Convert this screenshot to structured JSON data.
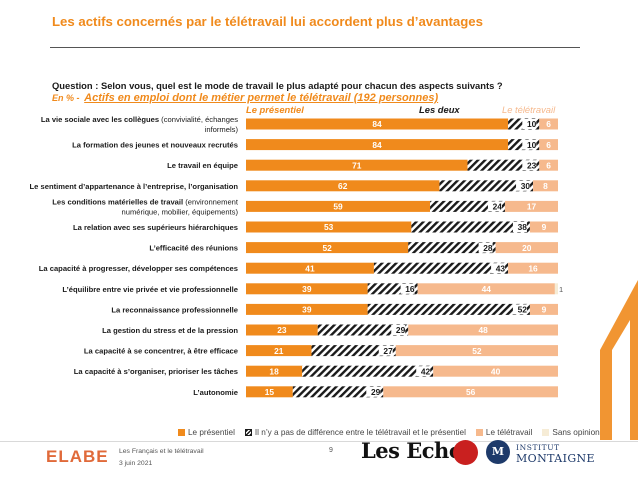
{
  "title": "Les actifs concernés par le télétravail lui accordent plus d’avantages",
  "question": "Question : Selon vous, quel est le mode de travail le plus adapté pour chacun des aspects suivants ?",
  "subquestion": {
    "pct_prefix": "En % -",
    "population": "Actifs en emploi dont le métier permet le télétravail (192 personnes)"
  },
  "column_headers": {
    "presentiel": "Le présentiel",
    "les_deux": "Les deux",
    "teletravail": "Le télétravail"
  },
  "legend": [
    {
      "key": "presentiel",
      "label": "Le présentiel"
    },
    {
      "key": "les_deux",
      "label": "Il n’y a pas de différence entre le télétravail et le présentiel"
    },
    {
      "key": "teletravail",
      "label": "Le télétravail"
    },
    {
      "key": "sans_opinion",
      "label": "Sans opinion"
    }
  ],
  "colors": {
    "accent": "#f08a1c",
    "presentiel": "#f08a1c",
    "les_deux": "#1a1a1a",
    "teletravail": "#f6b98d",
    "sans_opinion": "#f6ecd6"
  },
  "chart_data": {
    "type": "bar",
    "orientation": "horizontal",
    "stacked": true,
    "categories": [
      {
        "label_bold": "La vie sociale avec les collègues",
        "label_rest": " (convivialité, échanges",
        "label_line2": "informels)"
      },
      {
        "label_bold": "La formation des jeunes et nouveaux recrutés",
        "label_rest": "",
        "label_line2": ""
      },
      {
        "label_bold": "Le travail en équipe",
        "label_rest": "",
        "label_line2": ""
      },
      {
        "label_bold": "Le sentiment d’appartenance à l’entreprise, l’organisation",
        "label_rest": "",
        "label_line2": ""
      },
      {
        "label_bold": "Les conditions matérielles de travail",
        "label_rest": " (environnement",
        "label_line2": "numérique, mobilier, équipements)"
      },
      {
        "label_bold": "La relation avec ses supérieurs hiérarchiques",
        "label_rest": "",
        "label_line2": ""
      },
      {
        "label_bold": "L’efficacité des réunions",
        "label_rest": "",
        "label_line2": ""
      },
      {
        "label_bold": "La capacité à progresser, développer ses compétences",
        "label_rest": "",
        "label_line2": ""
      },
      {
        "label_bold": "L’équilibre entre vie privée et vie professionnelle",
        "label_rest": "",
        "label_line2": ""
      },
      {
        "label_bold": "La reconnaissance professionnelle",
        "label_rest": "",
        "label_line2": ""
      },
      {
        "label_bold": "La gestion du stress et de la pression",
        "label_rest": "",
        "label_line2": ""
      },
      {
        "label_bold": "La capacité à se concentrer, à être efficace",
        "label_rest": "",
        "label_line2": ""
      },
      {
        "label_bold": "La capacité à s’organiser, prioriser les tâches",
        "label_rest": "",
        "label_line2": ""
      },
      {
        "label_bold": "L’autonomie",
        "label_rest": "",
        "label_line2": ""
      }
    ],
    "series": [
      {
        "name": "Le présentiel",
        "key": "presentiel",
        "values": [
          84,
          84,
          71,
          62,
          59,
          53,
          52,
          41,
          39,
          39,
          23,
          21,
          18,
          15
        ]
      },
      {
        "name": "Il n’y a pas de différence entre le télétravail et le présentiel",
        "key": "les_deux",
        "values": [
          10,
          10,
          23,
          30,
          24,
          38,
          28,
          43,
          16,
          52,
          29,
          27,
          42,
          29
        ]
      },
      {
        "name": "Le télétravail",
        "key": "teletravail",
        "values": [
          6,
          6,
          6,
          8,
          17,
          9,
          20,
          16,
          44,
          9,
          48,
          52,
          40,
          56
        ]
      },
      {
        "name": "Sans opinion",
        "key": "sans_opinion",
        "values": [
          0,
          0,
          0,
          0,
          0,
          0,
          0,
          0,
          1,
          0,
          0,
          0,
          0,
          0
        ]
      }
    ],
    "xlim": [
      0,
      100
    ],
    "grid": false,
    "legend_position": "bottom"
  },
  "footer": {
    "brand": "ELABE",
    "study": "Les Français et le télétravail",
    "date": "3 juin 2021",
    "page": "9",
    "partner1": "Les Echos",
    "partner3_line1": "INSTITUT",
    "partner3_line2": "MONTAIGNE"
  }
}
